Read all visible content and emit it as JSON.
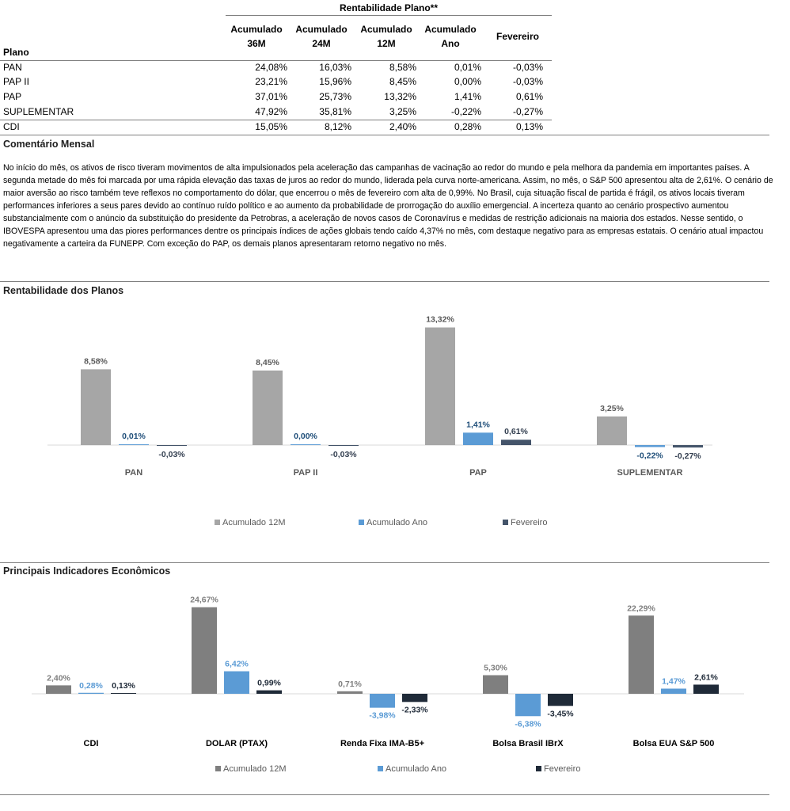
{
  "table": {
    "group_title": "Rentabilidade Plano**",
    "plan_header": "Plano",
    "col_headers": [
      [
        "Acumulado",
        "36M"
      ],
      [
        "Acumulado",
        "24M"
      ],
      [
        "Acumulado",
        "12M"
      ],
      [
        "Acumulado",
        "Ano"
      ],
      [
        "Fevereiro"
      ]
    ],
    "rows": [
      {
        "plan": "PAN",
        "values": [
          "24,08%",
          "16,03%",
          "8,58%",
          "0,01%",
          "-0,03%"
        ]
      },
      {
        "plan": "PAP II",
        "values": [
          "23,21%",
          "15,96%",
          "8,45%",
          "0,00%",
          "-0,03%"
        ]
      },
      {
        "plan": "PAP",
        "values": [
          "37,01%",
          "25,73%",
          "13,32%",
          "1,41%",
          "0,61%"
        ]
      },
      {
        "plan": "SUPLEMENTAR",
        "values": [
          "47,92%",
          "35,81%",
          "3,25%",
          "-0,22%",
          "-0,27%"
        ]
      },
      {
        "plan": "CDI",
        "values": [
          "15,05%",
          "8,12%",
          "2,40%",
          "0,28%",
          "0,13%"
        ]
      }
    ]
  },
  "comment": {
    "title": "Comentário Mensal",
    "text": "No início do mês, os ativos de risco tiveram movimentos de alta impulsionados pela aceleração das campanhas de vacinação ao redor do mundo e pela melhora da pandemia em importantes países. A segunda metade do mês foi marcada por uma rápida elevação das taxas de juros ao redor do mundo, liderada pela curva norte-americana. Assim, no mês, o S&P 500 apresentou alta de 2,61%. O cenário de maior aversão ao risco também teve reflexos no comportamento do dólar, que encerrou o mês de fevereiro com alta de 0,99%.  No Brasil, cuja situação fiscal de partida é frágil, os ativos locais tiveram performances inferiores a seus pares devido ao contínuo ruído político e ao aumento da probabilidade de prorrogação do auxílio emergencial. A incerteza quanto ao cenário prospectivo aumentou substancialmente com o anúncio da substituição do presidente da Petrobras, a aceleração de novos casos de Coronavírus e medidas de restrição adicionais na maioria dos estados. Nesse sentido, o IBOVESPA apresentou uma das piores performances dentre os principais índices de ações globais tendo caído 4,37% no mês, com destaque negativo para as empresas estatais. O cenário atual impactou negativamente a carteira da FUNEPP. Com exceção do PAP, os demais planos apresentaram retorno negativo no mês."
  },
  "section_titles": {
    "plans_chart": "Rentabilidade dos Planos",
    "indicators_chart": "Principais Indicadores Econômicos"
  },
  "chart_data": [
    {
      "type": "bar",
      "title": "Rentabilidade dos Planos",
      "categories": [
        "PAN",
        "PAP II",
        "PAP",
        "SUPLEMENTAR"
      ],
      "series": [
        {
          "name": "Acumulado 12M",
          "values": [
            8.58,
            8.45,
            13.32,
            3.25
          ],
          "labels": [
            "8,58%",
            "8,45%",
            "13,32%",
            "3,25%"
          ],
          "color": "#a6a6a6",
          "label_color": "#595959"
        },
        {
          "name": "Acumulado Ano",
          "values": [
            0.01,
            0.0,
            1.41,
            -0.22
          ],
          "labels": [
            "0,01%",
            "0,00%",
            "1,41%",
            "-0,22%"
          ],
          "color": "#5b9bd5",
          "label_color": "#1f4e79"
        },
        {
          "name": "Fevereiro",
          "values": [
            -0.03,
            -0.03,
            0.61,
            -0.27
          ],
          "labels": [
            "-0,03%",
            "-0,03%",
            "0,61%",
            "-0,27%"
          ],
          "color": "#44546a",
          "label_color": "#333f50"
        }
      ],
      "legend_position": "bottom",
      "grid": false
    },
    {
      "type": "bar",
      "title": "Principais Indicadores Econômicos",
      "categories": [
        "CDI",
        "DOLAR (PTAX)",
        "Renda Fixa IMA-B5+",
        "Bolsa Brasil IBrX",
        "Bolsa EUA S&P 500"
      ],
      "series": [
        {
          "name": "Acumulado 12M",
          "values": [
            2.4,
            24.67,
            0.71,
            5.3,
            22.29
          ],
          "labels": [
            "2,40%",
            "24,67%",
            "0,71%",
            "5,30%",
            "22,29%"
          ],
          "color": "#7f7f7f",
          "label_color": "#7f7f7f"
        },
        {
          "name": "Acumulado Ano",
          "values": [
            0.28,
            6.42,
            -3.98,
            -6.38,
            1.47
          ],
          "labels": [
            "0,28%",
            "6,42%",
            "-3,98%",
            "-6,38%",
            "1,47%"
          ],
          "color": "#5b9bd5",
          "label_color": "#5b9bd5"
        },
        {
          "name": "Fevereiro",
          "values": [
            0.13,
            0.99,
            -2.33,
            -3.45,
            2.61
          ],
          "labels": [
            "0,13%",
            "0,99%",
            "-2,33%",
            "-3,45%",
            "2,61%"
          ],
          "color": "#1f2a38",
          "label_color": "#1f2a38"
        }
      ],
      "legend_position": "bottom",
      "grid": false
    }
  ]
}
